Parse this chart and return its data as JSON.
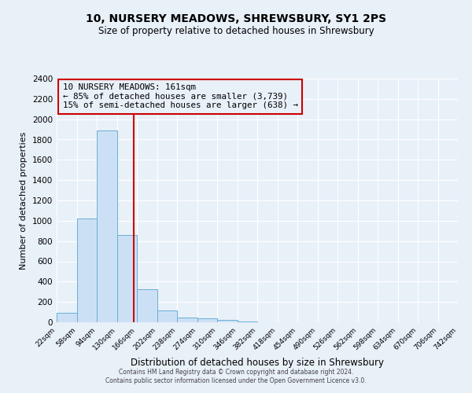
{
  "title": "10, NURSERY MEADOWS, SHREWSBURY, SY1 2PS",
  "subtitle": "Size of property relative to detached houses in Shrewsbury",
  "xlabel": "Distribution of detached houses by size in Shrewsbury",
  "ylabel": "Number of detached properties",
  "bin_edges": [
    22,
    58,
    94,
    130,
    166,
    202,
    238,
    274,
    310,
    346,
    382,
    418,
    454,
    490,
    526,
    562,
    598,
    634,
    670,
    706,
    742
  ],
  "bin_counts": [
    90,
    1020,
    1890,
    860,
    325,
    115,
    50,
    35,
    20,
    5,
    2,
    0,
    0,
    0,
    0,
    0,
    0,
    0,
    0,
    0
  ],
  "bar_facecolor": "#cce0f5",
  "bar_edgecolor": "#6aaed6",
  "property_line_x": 161,
  "property_line_color": "#cc0000",
  "annotation_box_edgecolor": "#cc0000",
  "annotation_text_line1": "10 NURSERY MEADOWS: 161sqm",
  "annotation_text_line2": "← 85% of detached houses are smaller (3,739)",
  "annotation_text_line3": "15% of semi-detached houses are larger (638) →",
  "ylim": [
    0,
    2400
  ],
  "yticks": [
    0,
    200,
    400,
    600,
    800,
    1000,
    1200,
    1400,
    1600,
    1800,
    2000,
    2200,
    2400
  ],
  "figure_facecolor": "#e8f0f8",
  "axes_facecolor": "#e8f0f8",
  "grid_color": "#ffffff",
  "footer_line1": "Contains HM Land Registry data © Crown copyright and database right 2024.",
  "footer_line2": "Contains public sector information licensed under the Open Government Licence v3.0."
}
